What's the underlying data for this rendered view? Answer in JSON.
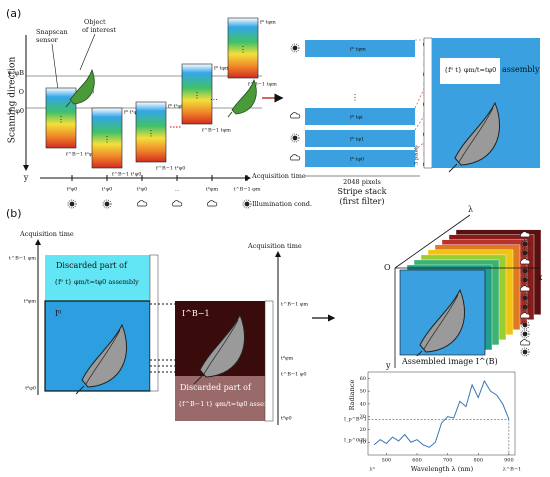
{
  "panel_a": {
    "label": "(a)",
    "scanning_direction": "Scanning direction",
    "axis_y": "y",
    "y_labels": [
      "y_φB",
      "O",
      "y_φ0"
    ],
    "sensor": [
      "Snapscan",
      "sensor"
    ],
    "object": [
      "Object",
      "of interest"
    ],
    "column_labels": [
      [
        "f⁰ t⁰φ0",
        "f^B−1 t⁰φ0"
      ],
      [
        "f⁰ t¹φ0",
        "f^B−1 t¹φ0"
      ],
      [
        "f⁰ t²φ0",
        "f^B−1 t²φ0"
      ],
      [
        "f⁰ tφm",
        "f^B−1 tφm"
      ],
      [
        "f⁰ tφm",
        "f^B−1 tφm"
      ]
    ],
    "time_labels": [
      "t⁰φ0",
      "t¹φ0",
      "t²φ0",
      "…",
      "t⁰φm",
      "t^B−1 φm"
    ],
    "acquisition_time": "Acquisition time",
    "illumination": "Illumination cond.",
    "stripe_labels": [
      "f⁰ tφm",
      "f⁰ tφi",
      "f⁰ tφ1",
      "f⁰ tφ0"
    ],
    "pixels_2048": "2048 pixels",
    "stripe_stack": [
      "Stripe stack",
      "(first filter)"
    ],
    "five_pixels": "5 pixels",
    "assembly": [
      "{f⁰ t} φm/t=tφ0",
      "assembly"
    ]
  },
  "panel_b": {
    "label": "(b)",
    "acquisition_time": "Acquisition time",
    "left_ticks": [
      "t^B−1 φm",
      "t⁰φm",
      "t⁰φ0"
    ],
    "right_ticks": [
      "t^B−1 φm",
      "t⁰φm",
      "t^B−1 φ0",
      "t⁰φ0"
    ],
    "first_image": "I⁰",
    "last_image": "I^B−1",
    "discarded_top": [
      "Discarded part of",
      "{f⁰ t} φm/t=tφ0  assembly"
    ],
    "discarded_bottom": [
      "Discarded part of",
      "{f^B−1 t} φm/t=tφ0  assembly"
    ],
    "cube_axes": [
      "O",
      "λ",
      "x",
      "y"
    ],
    "assembled": "Assembled image I^(B)"
  },
  "spectrum": {
    "type": "line",
    "ylabel": "Radiance",
    "xlabel": "Wavelength λ (nm)",
    "x": [
      460,
      480,
      500,
      520,
      540,
      560,
      580,
      600,
      620,
      640,
      660,
      680,
      700,
      720,
      740,
      760,
      780,
      800,
      820,
      840,
      860,
      880,
      900
    ],
    "values": [
      8,
      12,
      9,
      14,
      11,
      16,
      10,
      12,
      8,
      6,
      10,
      25,
      30,
      29,
      42,
      38,
      55,
      45,
      58,
      50,
      47,
      40,
      28
    ],
    "color": "#3a74b5",
    "xlim": [
      440,
      920
    ],
    "ylim": [
      0,
      65
    ],
    "xticks": [
      500,
      600,
      700,
      800,
      900
    ],
    "yticks": [
      10,
      20,
      30,
      40,
      50,
      60
    ],
    "x_end_labels": [
      "λ⁰",
      "λ^B−1"
    ],
    "y_labels": [
      "I_p^B−1",
      "I_p^0(B)"
    ]
  }
}
